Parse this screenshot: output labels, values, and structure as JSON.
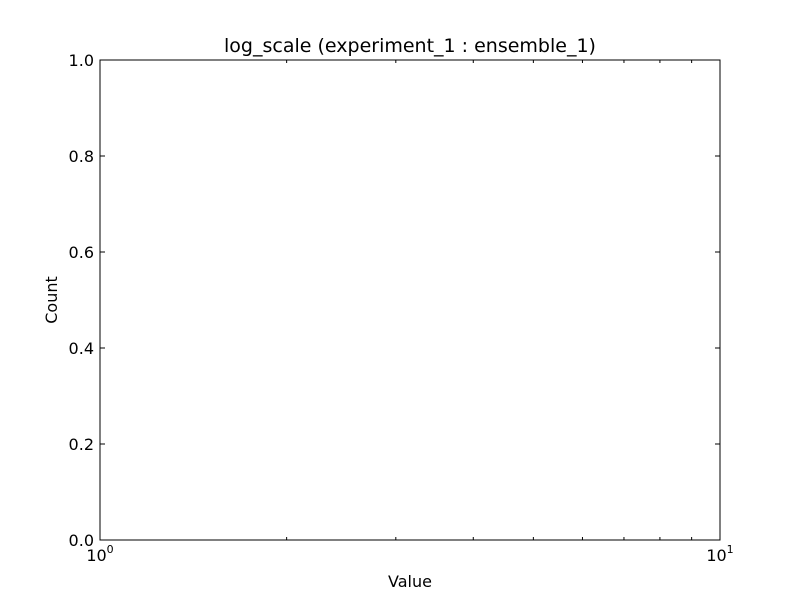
{
  "chart_data": {
    "type": "histogram",
    "title": "log_scale (experiment_1 : ensemble_1)",
    "xlabel": "Value",
    "ylabel": "Count",
    "xscale": "log",
    "xlim": [
      1,
      10
    ],
    "ylim": [
      0,
      1
    ],
    "x_ticks": [
      {
        "value": 1,
        "base": "10",
        "exp": "0"
      },
      {
        "value": 10,
        "base": "10",
        "exp": "1"
      }
    ],
    "x_minor_ticks": [
      2,
      3,
      4,
      5,
      6,
      7,
      8,
      9
    ],
    "y_ticks": [
      {
        "value": 0,
        "label": "0.0"
      },
      {
        "value": 0.2,
        "label": "0.2"
      },
      {
        "value": 0.4,
        "label": "0.4"
      },
      {
        "value": 0.6,
        "label": "0.6"
      },
      {
        "value": 0.8,
        "label": "0.8"
      },
      {
        "value": 1,
        "label": "1.0"
      }
    ],
    "series": [],
    "grid": false
  }
}
